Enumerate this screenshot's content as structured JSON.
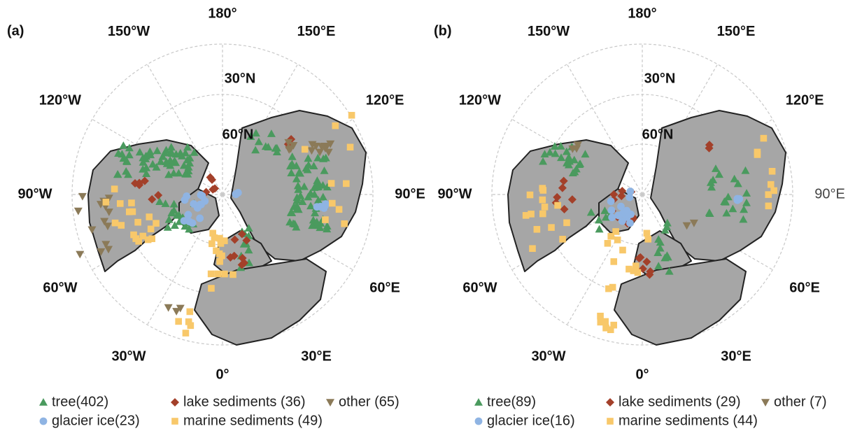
{
  "panels": [
    {
      "label": "(a)",
      "longitude_labels": [
        "180°",
        "150°E",
        "120°E",
        "90°E",
        "60°E",
        "30°E",
        "0°",
        "30°W",
        "60°W",
        "90°W",
        "120°W",
        "150°W"
      ],
      "latitude_labels": [
        "30°N",
        "60°N"
      ],
      "legend": [
        "tree(402)",
        "lake sediments (36)",
        "other (65)",
        "glacier ice(23)",
        "marine sediments (49)"
      ]
    },
    {
      "label": "(b)",
      "longitude_labels": [
        "180°",
        "150°E",
        "120°E",
        "90°E",
        "60°E",
        "30°E",
        "0°",
        "30°W",
        "60°W",
        "90°W",
        "120°W",
        "150°W"
      ],
      "latitude_labels": [
        "30°N",
        "60°N"
      ],
      "legend": [
        "tree(89)",
        "lake sediments (29)",
        "other (7)",
        "glacier ice(16)",
        "marine sediments (44)"
      ]
    }
  ]
}
